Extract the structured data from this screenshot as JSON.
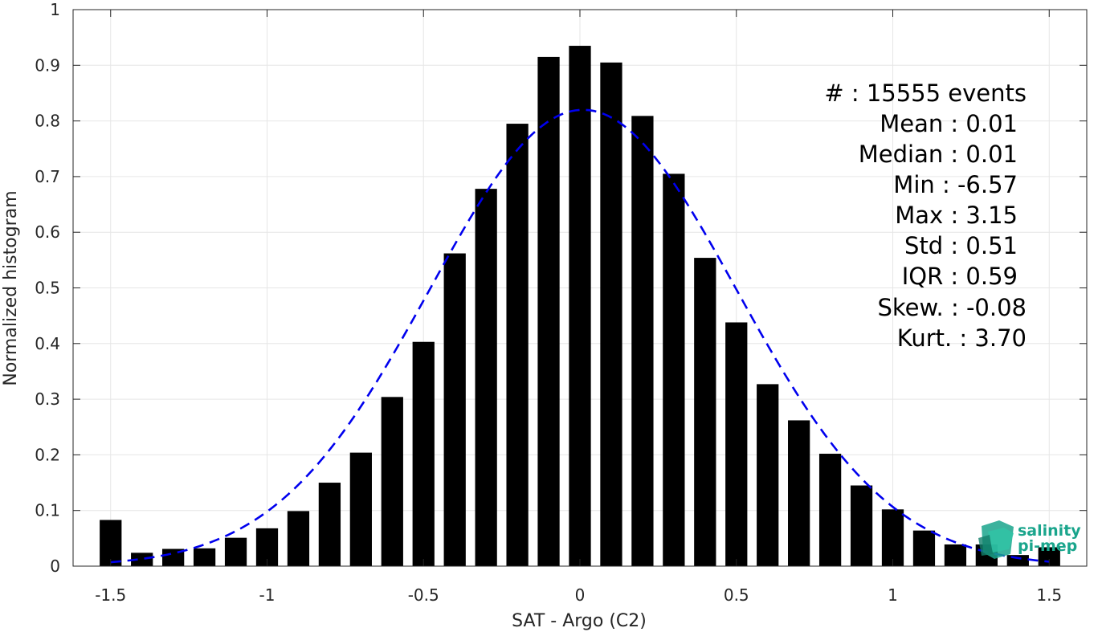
{
  "chart_data": {
    "type": "bar",
    "xlabel": "SAT - Argo (C2)",
    "ylabel": "Normalized histogram",
    "xlim": [
      -1.62,
      1.62
    ],
    "ylim": [
      0,
      1
    ],
    "xticks": [
      -1.5,
      -1,
      -0.5,
      0,
      0.5,
      1,
      1.5
    ],
    "xtick_labels": [
      "-1.5",
      "-1",
      "-0.5",
      "0",
      "0.5",
      "1",
      "1.5"
    ],
    "yticks": [
      0,
      0.1,
      0.2,
      0.3,
      0.4,
      0.5,
      0.6,
      0.7,
      0.8,
      0.9,
      1
    ],
    "ytick_labels": [
      "0",
      "0.1",
      "0.2",
      "0.3",
      "0.4",
      "0.5",
      "0.6",
      "0.7",
      "0.8",
      "0.9",
      "1"
    ],
    "grid": true,
    "bar_color": "#000000",
    "bar_width": 0.07,
    "x": [
      -1.5,
      -1.4,
      -1.3,
      -1.2,
      -1.1,
      -1.0,
      -0.9,
      -0.8,
      -0.7,
      -0.6,
      -0.5,
      -0.4,
      -0.3,
      -0.2,
      -0.1,
      0.0,
      0.1,
      0.2,
      0.3,
      0.4,
      0.5,
      0.6,
      0.7,
      0.8,
      0.9,
      1.0,
      1.1,
      1.2,
      1.3,
      1.4,
      1.5
    ],
    "values": [
      0.083,
      0.024,
      0.031,
      0.032,
      0.051,
      0.068,
      0.099,
      0.15,
      0.204,
      0.304,
      0.403,
      0.562,
      0.678,
      0.795,
      0.915,
      0.935,
      0.905,
      0.809,
      0.705,
      0.554,
      0.438,
      0.327,
      0.262,
      0.202,
      0.145,
      0.102,
      0.064,
      0.039,
      0.039,
      0.02,
      0.034
    ],
    "fit": {
      "color": "#0000ee",
      "style": "dashed",
      "mean": 0.01,
      "std": 0.49,
      "peak": 0.82,
      "x_range": [
        -1.5,
        1.5
      ]
    },
    "stats": [
      {
        "label": "#  : 15555 events"
      },
      {
        "label": "Mean : 0.01"
      },
      {
        "label": "Median : 0.01"
      },
      {
        "label": "Min : -6.57"
      },
      {
        "label": "Max : 3.15"
      },
      {
        "label": "Std : 0.51"
      },
      {
        "label": "IQR : 0.59"
      },
      {
        "label": "Skew. : -0.08"
      },
      {
        "label": "Kurt. : 3.70"
      }
    ]
  },
  "logo": {
    "line1": "salinity",
    "line2": "pi-mep",
    "color": "#1aa58c"
  }
}
